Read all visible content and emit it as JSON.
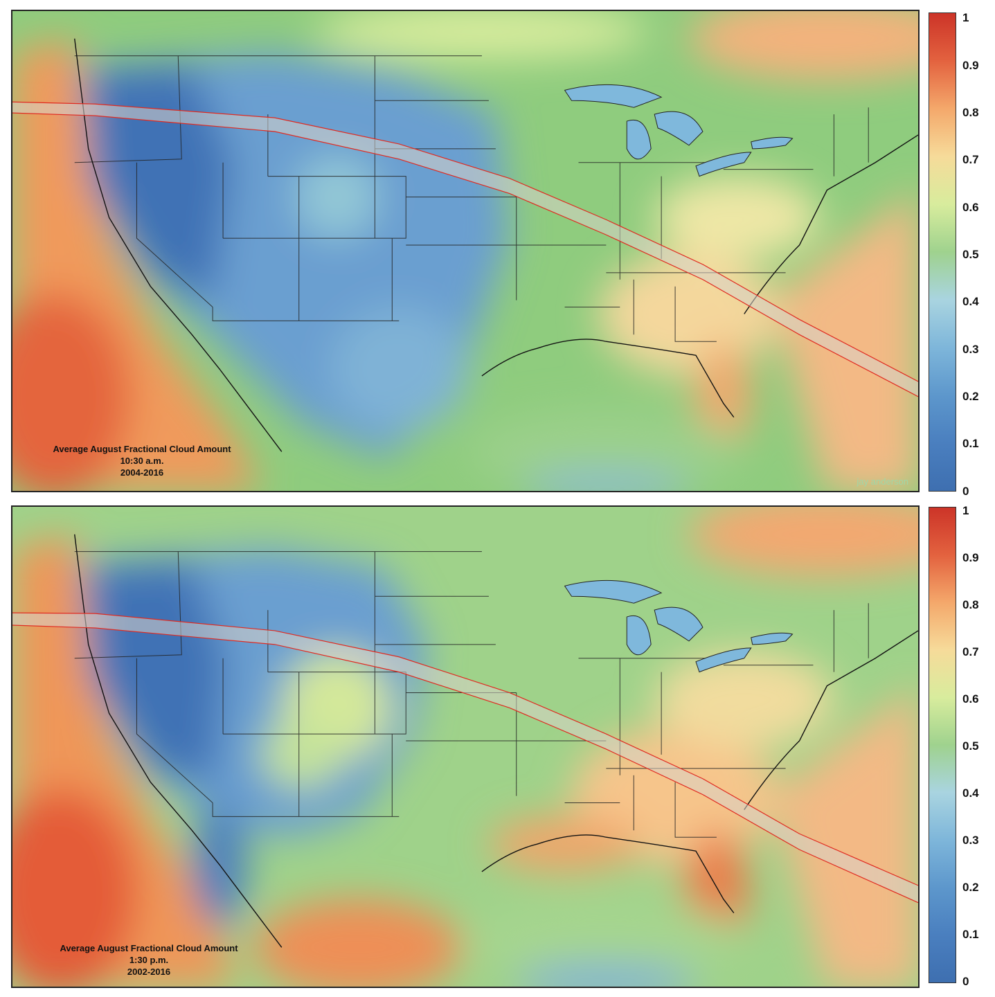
{
  "panels": [
    {
      "caption": {
        "line1": "Average August Fractional Cloud Amount",
        "line2": "10:30 a.m.",
        "line3": "2004-2016"
      },
      "credit": "jay anderson"
    },
    {
      "caption": {
        "line1": "Average August Fractional Cloud Amount",
        "line2": "1:30 p.m.",
        "line3": "2002-2016"
      }
    }
  ],
  "colorscale": {
    "ticks": [
      "1",
      "0.9",
      "0.8",
      "0.7",
      "0.6",
      "0.5",
      "0.4",
      "0.3",
      "0.2",
      "0.1",
      "0"
    ],
    "min": 0,
    "max": 1,
    "colors": [
      "#3e6fb0",
      "#5d97cc",
      "#a9d4e0",
      "#9fd28e",
      "#d8ec9d",
      "#f6db9a",
      "#f4a86b",
      "#cc3428"
    ]
  }
}
